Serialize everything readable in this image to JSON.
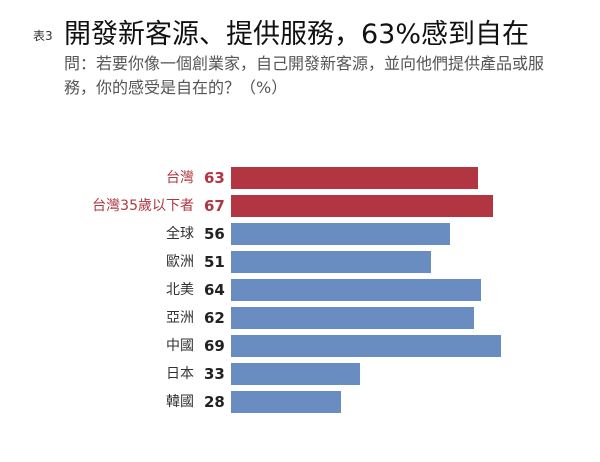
{
  "header": {
    "tag": "表3",
    "title": "開發新客源、提供服務，63%感到自在",
    "subtitle": "問：若要你像一個創業家，自己開發新客源，並向他們提供產品或服務，你的感受是自在的？（%）"
  },
  "colors": {
    "highlight": "#b13641",
    "default": "#6a8dc1"
  },
  "chart_data": {
    "type": "bar",
    "orientation": "horizontal",
    "title": "開發新客源、提供服務，63%感到自在",
    "subtitle": "問：若要你像一個創業家，自己開發新客源，並向他們提供產品或服務，你的感受是自在的？（%）",
    "xlabel": "",
    "ylabel": "",
    "unit": "%",
    "grid": false,
    "categories": [
      "台灣",
      "台灣35歲以下者",
      "全球",
      "歐洲",
      "北美",
      "亞洲",
      "中國",
      "日本",
      "韓國"
    ],
    "values": [
      63,
      67,
      56,
      51,
      64,
      62,
      69,
      33,
      28
    ],
    "highlighted": [
      "台灣",
      "台灣35歲以下者"
    ],
    "rows": [
      {
        "label": "台灣",
        "value": "63"
      },
      {
        "label": "台灣35歲以下者",
        "value": "67"
      },
      {
        "label": "全球",
        "value": "56"
      },
      {
        "label": "歐洲",
        "value": "51"
      },
      {
        "label": "北美",
        "value": "64"
      },
      {
        "label": "亞洲",
        "value": "62"
      },
      {
        "label": "中國",
        "value": "69"
      },
      {
        "label": "日本",
        "value": "33"
      },
      {
        "label": "韓國",
        "value": "28"
      }
    ]
  }
}
